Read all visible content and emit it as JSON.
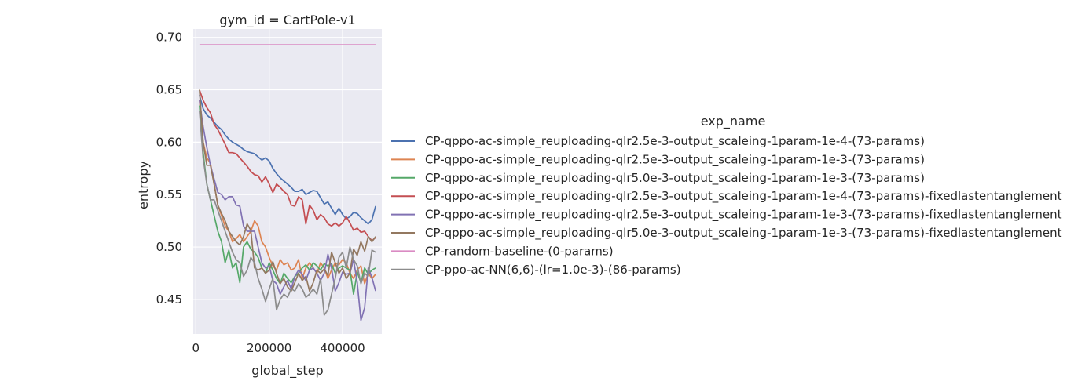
{
  "chart_data": {
    "type": "line",
    "title": "gym_id = CartPole-v1",
    "xlabel": "global_step",
    "ylabel": "entropy",
    "xlim": [
      -7000,
      507000
    ],
    "ylim": [
      0.417,
      0.708
    ],
    "xticks": [
      0,
      200000,
      400000
    ],
    "xtick_labels": [
      "0",
      "200000",
      "400000"
    ],
    "yticks": [
      0.45,
      0.5,
      0.55,
      0.6,
      0.65,
      0.7
    ],
    "ytick_labels": [
      "0.45",
      "0.50",
      "0.55",
      "0.60",
      "0.65",
      "0.70"
    ],
    "grid": true,
    "legend_title": "exp_name",
    "legend_position": "right",
    "x": [
      10000,
      20000,
      30000,
      40000,
      50000,
      60000,
      70000,
      80000,
      90000,
      100000,
      110000,
      120000,
      130000,
      140000,
      150000,
      160000,
      170000,
      180000,
      190000,
      200000,
      210000,
      220000,
      230000,
      240000,
      250000,
      260000,
      270000,
      280000,
      290000,
      300000,
      310000,
      320000,
      330000,
      340000,
      350000,
      360000,
      370000,
      380000,
      390000,
      400000,
      410000,
      420000,
      430000,
      440000,
      450000,
      460000,
      470000,
      480000,
      490000
    ],
    "series": [
      {
        "name": "CP-qppo-ac-simple_reuploading-qlr2.5e-3-output_scaleing-1param-1e-4-(73-params)",
        "color": "#4c72b0",
        "values": [
          0.645,
          0.632,
          0.626,
          0.623,
          0.619,
          0.615,
          0.612,
          0.607,
          0.603,
          0.6,
          0.598,
          0.596,
          0.593,
          0.591,
          0.59,
          0.589,
          0.586,
          0.583,
          0.585,
          0.582,
          0.575,
          0.57,
          0.566,
          0.563,
          0.56,
          0.557,
          0.553,
          0.553,
          0.555,
          0.55,
          0.552,
          0.554,
          0.553,
          0.547,
          0.541,
          0.543,
          0.537,
          0.531,
          0.537,
          0.531,
          0.527,
          0.529,
          0.533,
          0.532,
          0.528,
          0.525,
          0.522,
          0.526,
          0.539
        ]
      },
      {
        "name": "CP-qppo-ac-simple_reuploading-qlr2.5e-3-output_scaleing-1param-1e-3-(73-params)",
        "color": "#dd8452",
        "values": [
          0.64,
          0.6,
          0.585,
          0.58,
          0.56,
          0.54,
          0.53,
          0.52,
          0.515,
          0.505,
          0.508,
          0.512,
          0.505,
          0.51,
          0.515,
          0.525,
          0.52,
          0.505,
          0.5,
          0.49,
          0.482,
          0.478,
          0.488,
          0.483,
          0.485,
          0.478,
          0.48,
          0.488,
          0.47,
          0.48,
          0.485,
          0.48,
          0.475,
          0.485,
          0.48,
          0.47,
          0.478,
          0.485,
          0.483,
          0.488,
          0.485,
          0.475,
          0.47,
          0.478,
          0.482,
          0.465,
          0.475,
          0.47,
          0.474
        ]
      },
      {
        "name": "CP-qppo-ac-simple_reuploading-qlr5.0e-3-output_scaleing-1param-1e-3-(73-params)",
        "color": "#55a868",
        "values": [
          0.635,
          0.59,
          0.56,
          0.545,
          0.53,
          0.515,
          0.505,
          0.485,
          0.497,
          0.48,
          0.485,
          0.466,
          0.5,
          0.505,
          0.498,
          0.495,
          0.49,
          0.48,
          0.475,
          0.485,
          0.478,
          0.47,
          0.465,
          0.475,
          0.47,
          0.466,
          0.472,
          0.475,
          0.48,
          0.483,
          0.478,
          0.485,
          0.482,
          0.478,
          0.484,
          0.482,
          0.484,
          0.475,
          0.48,
          0.482,
          0.48,
          0.478,
          0.455,
          0.476,
          0.466,
          0.48,
          0.474,
          0.478,
          0.48
        ]
      },
      {
        "name": "CP-qppo-ac-simple_reuploading-qlr2.5e-3-output_scaleing-1param-1e-4-(73-params)-fixedlastentanglement",
        "color": "#c44e52",
        "values": [
          0.65,
          0.64,
          0.633,
          0.628,
          0.617,
          0.612,
          0.605,
          0.598,
          0.59,
          0.59,
          0.589,
          0.585,
          0.581,
          0.577,
          0.572,
          0.569,
          0.568,
          0.562,
          0.567,
          0.56,
          0.552,
          0.56,
          0.557,
          0.553,
          0.55,
          0.54,
          0.539,
          0.548,
          0.545,
          0.522,
          0.54,
          0.535,
          0.526,
          0.531,
          0.528,
          0.522,
          0.52,
          0.523,
          0.52,
          0.523,
          0.529,
          0.523,
          0.516,
          0.518,
          0.514,
          0.515,
          0.51,
          0.506,
          0.509
        ]
      },
      {
        "name": "CP-qppo-ac-simple_reuploading-qlr2.5e-3-output_scaleing-1param-1e-3-(73-params)-fixedlastentanglement",
        "color": "#8172b3",
        "values": [
          0.64,
          0.615,
          0.595,
          0.578,
          0.565,
          0.552,
          0.55,
          0.545,
          0.548,
          0.548,
          0.54,
          0.539,
          0.52,
          0.515,
          0.515,
          0.515,
          0.5,
          0.485,
          0.48,
          0.482,
          0.468,
          0.465,
          0.455,
          0.462,
          0.468,
          0.46,
          0.472,
          0.478,
          0.474,
          0.468,
          0.478,
          0.48,
          0.475,
          0.468,
          0.475,
          0.493,
          0.48,
          0.458,
          0.466,
          0.476,
          0.474,
          0.475,
          0.488,
          0.466,
          0.43,
          0.442,
          0.48,
          0.471,
          0.458
        ]
      },
      {
        "name": "CP-qppo-ac-simple_reuploading-qlr5.0e-3-output_scaleing-1param-1e-3-(73-params)-fixedlastentanglement",
        "color": "#937860",
        "values": [
          0.65,
          0.6,
          0.578,
          0.578,
          0.56,
          0.54,
          0.532,
          0.525,
          0.515,
          0.51,
          0.505,
          0.502,
          0.51,
          0.522,
          0.516,
          0.48,
          0.478,
          0.48,
          0.475,
          0.478,
          0.486,
          0.475,
          0.465,
          0.47,
          0.462,
          0.458,
          0.466,
          0.475,
          0.468,
          0.472,
          0.458,
          0.466,
          0.478,
          0.475,
          0.479,
          0.473,
          0.495,
          0.485,
          0.475,
          0.48,
          0.47,
          0.475,
          0.498,
          0.492,
          0.505,
          0.496,
          0.51,
          0.505,
          0.51
        ]
      },
      {
        "name": "CP-random-baseline-(0-params)",
        "color": "#da8bc3",
        "values": [
          0.693,
          0.693,
          0.693,
          0.693,
          0.693,
          0.693,
          0.693,
          0.693,
          0.693,
          0.693,
          0.693,
          0.693,
          0.693,
          0.693,
          0.693,
          0.693,
          0.693,
          0.693,
          0.693,
          0.693,
          0.693,
          0.693,
          0.693,
          0.693,
          0.693,
          0.693,
          0.693,
          0.693,
          0.693,
          0.693,
          0.693,
          0.693,
          0.693,
          0.693,
          0.693,
          0.693,
          0.693,
          0.693,
          0.693,
          0.693,
          0.693,
          0.693,
          0.693,
          0.693,
          0.693,
          0.693,
          0.693,
          0.693,
          0.693
        ]
      },
      {
        "name": "CP-ppo-ac-NN(6,6)-(lr=1.0e-3)-(86-params)",
        "color": "#8c8c8c",
        "values": [
          0.63,
          0.585,
          0.56,
          0.545,
          0.545,
          0.535,
          0.525,
          0.515,
          0.505,
          0.495,
          0.488,
          0.485,
          0.472,
          0.478,
          0.49,
          0.485,
          0.47,
          0.46,
          0.448,
          0.46,
          0.47,
          0.44,
          0.45,
          0.455,
          0.452,
          0.46,
          0.458,
          0.465,
          0.46,
          0.452,
          0.455,
          0.46,
          0.455,
          0.47,
          0.435,
          0.44,
          0.455,
          0.47,
          0.49,
          0.495,
          0.48,
          0.5,
          0.488,
          0.482,
          0.465,
          0.475,
          0.472,
          0.497,
          0.495
        ]
      }
    ]
  }
}
